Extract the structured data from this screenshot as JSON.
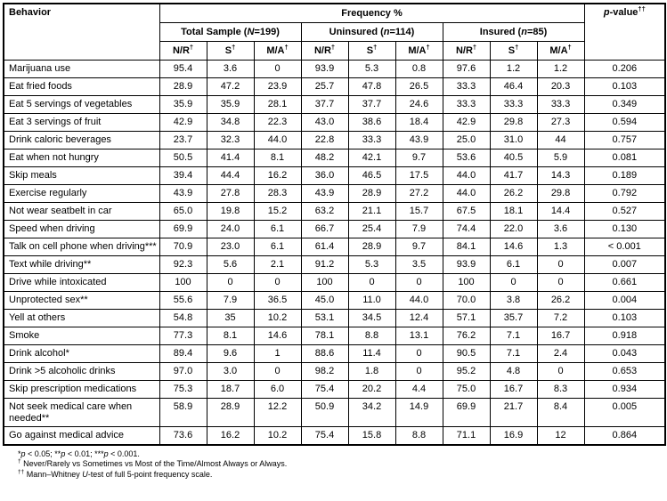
{
  "header": {
    "behavior": "Behavior",
    "frequency": "Frequency %",
    "pvalue": {
      "italic": "p",
      "text": "-value",
      "sup": "††"
    },
    "groups": [
      {
        "prefix": "Total Sample (",
        "var": "N",
        "suffix": "=199)"
      },
      {
        "prefix": "Uninsured (",
        "var": "n",
        "suffix": "=114)"
      },
      {
        "prefix": "Insured (",
        "var": "n",
        "suffix": "=85)"
      }
    ],
    "sub": [
      {
        "text": "N/R",
        "sup": "†"
      },
      {
        "text": "S",
        "sup": "†"
      },
      {
        "text": "M/A",
        "sup": "†"
      }
    ]
  },
  "rows": [
    {
      "behavior": "Marijuana use",
      "values": [
        "95.4",
        "3.6",
        "0",
        "93.9",
        "5.3",
        "0.8",
        "97.6",
        "1.2",
        "1.2"
      ],
      "p": "0.206"
    },
    {
      "behavior": "Eat fried foods",
      "values": [
        "28.9",
        "47.2",
        "23.9",
        "25.7",
        "47.8",
        "26.5",
        "33.3",
        "46.4",
        "20.3"
      ],
      "p": "0.103"
    },
    {
      "behavior": "Eat 5 servings of vegetables",
      "values": [
        "35.9",
        "35.9",
        "28.1",
        "37.7",
        "37.7",
        "24.6",
        "33.3",
        "33.3",
        "33.3"
      ],
      "p": "0.349"
    },
    {
      "behavior": "Eat 3 servings of fruit",
      "values": [
        "42.9",
        "34.8",
        "22.3",
        "43.0",
        "38.6",
        "18.4",
        "42.9",
        "29.8",
        "27.3"
      ],
      "p": "0.594"
    },
    {
      "behavior": "Drink caloric beverages",
      "values": [
        "23.7",
        "32.3",
        "44.0",
        "22.8",
        "33.3",
        "43.9",
        "25.0",
        "31.0",
        "44"
      ],
      "p": "0.757"
    },
    {
      "behavior": "Eat when not hungry",
      "values": [
        "50.5",
        "41.4",
        "8.1",
        "48.2",
        "42.1",
        "9.7",
        "53.6",
        "40.5",
        "5.9"
      ],
      "p": "0.081"
    },
    {
      "behavior": "Skip meals",
      "values": [
        "39.4",
        "44.4",
        "16.2",
        "36.0",
        "46.5",
        "17.5",
        "44.0",
        "41.7",
        "14.3"
      ],
      "p": "0.189"
    },
    {
      "behavior": "Exercise regularly",
      "values": [
        "43.9",
        "27.8",
        "28.3",
        "43.9",
        "28.9",
        "27.2",
        "44.0",
        "26.2",
        "29.8"
      ],
      "p": "0.792"
    },
    {
      "behavior": "Not wear seatbelt in car",
      "values": [
        "65.0",
        "19.8",
        "15.2",
        "63.2",
        "21.1",
        "15.7",
        "67.5",
        "18.1",
        "14.4"
      ],
      "p": "0.527"
    },
    {
      "behavior": "Speed when driving",
      "values": [
        "69.9",
        "24.0",
        "6.1",
        "66.7",
        "25.4",
        "7.9",
        "74.4",
        "22.0",
        "3.6"
      ],
      "p": "0.130"
    },
    {
      "behavior": "Talk on cell phone when driving***",
      "values": [
        "70.9",
        "23.0",
        "6.1",
        "61.4",
        "28.9",
        "9.7",
        "84.1",
        "14.6",
        "1.3"
      ],
      "p": "< 0.001"
    },
    {
      "behavior": "Text while driving**",
      "values": [
        "92.3",
        "5.6",
        "2.1",
        "91.2",
        "5.3",
        "3.5",
        "93.9",
        "6.1",
        "0"
      ],
      "p": "0.007"
    },
    {
      "behavior": "Drive while intoxicated",
      "values": [
        "100",
        "0",
        "0",
        "100",
        "0",
        "0",
        "100",
        "0",
        "0"
      ],
      "p": "0.661"
    },
    {
      "behavior": "Unprotected sex**",
      "values": [
        "55.6",
        "7.9",
        "36.5",
        "45.0",
        "11.0",
        "44.0",
        "70.0",
        "3.8",
        "26.2"
      ],
      "p": "0.004"
    },
    {
      "behavior": "Yell at others",
      "values": [
        "54.8",
        "35",
        "10.2",
        "53.1",
        "34.5",
        "12.4",
        "57.1",
        "35.7",
        "7.2"
      ],
      "p": "0.103"
    },
    {
      "behavior": "Smoke",
      "values": [
        "77.3",
        "8.1",
        "14.6",
        "78.1",
        "8.8",
        "13.1",
        "76.2",
        "7.1",
        "16.7"
      ],
      "p": "0.918"
    },
    {
      "behavior": "Drink alcohol*",
      "values": [
        "89.4",
        "9.6",
        "1",
        "88.6",
        "11.4",
        "0",
        "90.5",
        "7.1",
        "2.4"
      ],
      "p": "0.043"
    },
    {
      "behavior": "Drink >5 alcoholic drinks",
      "values": [
        "97.0",
        "3.0",
        "0",
        "98.2",
        "1.8",
        "0",
        "95.2",
        "4.8",
        "0"
      ],
      "p": "0.653"
    },
    {
      "behavior": "Skip prescription medications",
      "values": [
        "75.3",
        "18.7",
        "6.0",
        "75.4",
        "20.2",
        "4.4",
        "75.0",
        "16.7",
        "8.3"
      ],
      "p": "0.934"
    },
    {
      "behavior": "Not seek medical care when needed**",
      "values": [
        "58.9",
        "28.9",
        "12.2",
        "50.9",
        "34.2",
        "14.9",
        "69.9",
        "21.7",
        "8.4"
      ],
      "p": "0.005"
    },
    {
      "behavior": "Go against medical advice",
      "values": [
        "73.6",
        "16.2",
        "10.2",
        "75.4",
        "15.8",
        "8.8",
        "71.1",
        "16.9",
        "12"
      ],
      "p": "0.864"
    }
  ],
  "footnotes": [
    [
      {
        "t": "*"
      },
      {
        "t": "p",
        "s": "i"
      },
      {
        "t": " < 0.05; **"
      },
      {
        "t": "p",
        "s": "i"
      },
      {
        "t": " < 0.01; ***"
      },
      {
        "t": "p",
        "s": "i"
      },
      {
        "t": " < 0.001."
      }
    ],
    [
      {
        "t": "†",
        "s": "sup"
      },
      {
        "t": " Never/Rarely vs Sometimes vs Most of the Time/Almost Always or Always."
      }
    ],
    [
      {
        "t": "††",
        "s": "sup"
      },
      {
        "t": " Mann–Whitney "
      },
      {
        "t": "U",
        "s": "i"
      },
      {
        "t": "-test of full 5-point frequency scale."
      }
    ]
  ]
}
